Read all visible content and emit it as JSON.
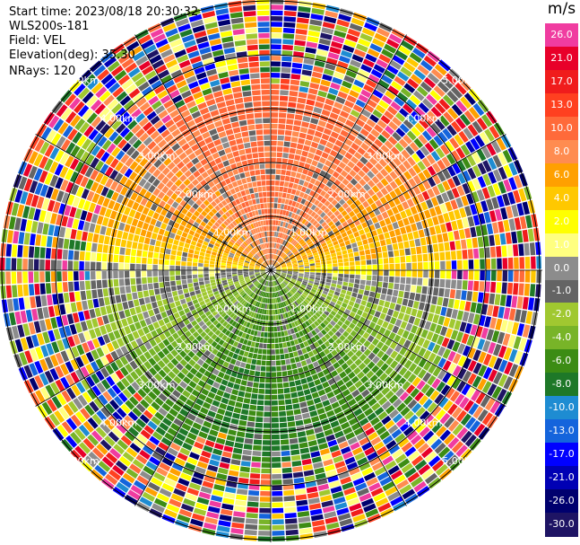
{
  "header": {
    "start_time": "Start time: 2023/08/18 20:30:32",
    "station": "WLS200s-181",
    "field": "Field: VEL",
    "elevation": "Elevation(deg): 35.30",
    "nrays": "NRays: 120"
  },
  "colorbar": {
    "unit": "m/s",
    "labels": [
      "26.0",
      "21.0",
      "17.0",
      "13.0",
      "10.0",
      "8.0",
      "6.0",
      "4.0",
      "2.0",
      "1.0",
      "0.0",
      "-1.0",
      "-2.0",
      "-4.0",
      "-6.0",
      "-8.0",
      "-10.0",
      "-13.0",
      "-17.0",
      "-21.0",
      "-26.0",
      "-30.0"
    ],
    "colors": [
      "#f03ca0",
      "#e8002a",
      "#f01c1c",
      "#ff4020",
      "#ff6a3a",
      "#ff8c50",
      "#ffa000",
      "#ffc800",
      "#ffff00",
      "#ffff80",
      "#8c8c8c",
      "#646464",
      "#a0c830",
      "#78b428",
      "#3c8c14",
      "#1e7828",
      "#1e8cd2",
      "#1464dc",
      "#0000ff",
      "#0000b4",
      "#00006e",
      "#1e1464"
    ]
  },
  "range_rings": {
    "labels": [
      "1.00km",
      "2.00km",
      "3.00km",
      "4.00km",
      "5.00km"
    ]
  },
  "colors": {
    "ring_line": "#000000",
    "background": "#ffffff"
  }
}
